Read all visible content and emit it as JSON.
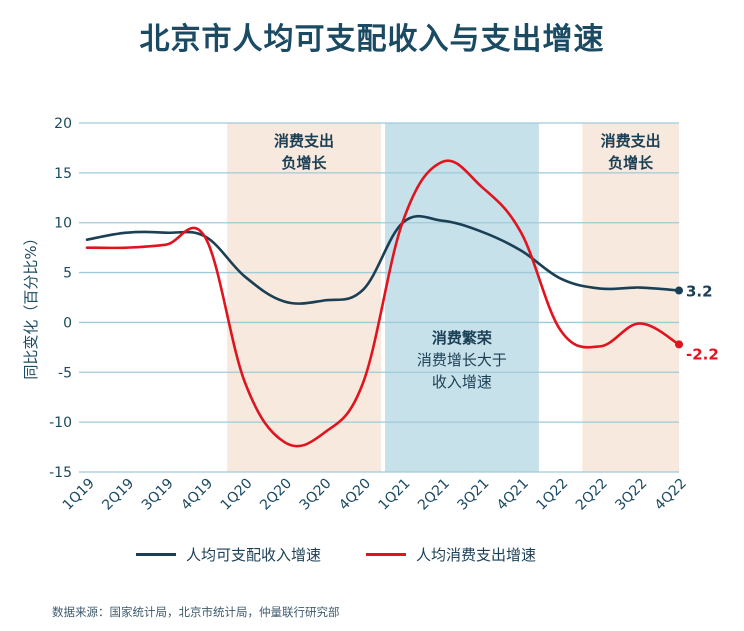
{
  "colors": {
    "income": "#1b3f55",
    "spending": "#e0141e",
    "negative_band": "#f7e9dd",
    "boom_band": "#c7e1ea",
    "grid": "#9fcad7"
  },
  "chart_data": {
    "type": "line",
    "title": "北京市人均可支配收入与支出增速",
    "ylabel": "同比变化（百分比%）",
    "ylim": [
      -15,
      20
    ],
    "yticks": [
      "20",
      "15",
      "10",
      "5",
      "0",
      "-5",
      "-10",
      "-15"
    ],
    "categories": [
      "1Q19",
      "2Q19",
      "3Q19",
      "4Q19",
      "1Q20",
      "2Q20",
      "3Q20",
      "4Q20",
      "1Q21",
      "2Q21",
      "3Q21",
      "4Q21",
      "1Q22",
      "2Q22",
      "3Q22",
      "4Q22"
    ],
    "series": [
      {
        "name": "人均可支配收入增速",
        "color": "income",
        "values": [
          8.3,
          9.0,
          9.0,
          8.6,
          4.6,
          2.1,
          2.2,
          3.3,
          10.0,
          10.2,
          9.1,
          7.2,
          4.4,
          3.4,
          3.5,
          3.2
        ]
      },
      {
        "name": "人均消费支出增速",
        "color": "spending",
        "values": [
          7.5,
          7.5,
          7.8,
          8.5,
          -6.0,
          -12.0,
          -11.1,
          -6.0,
          10.1,
          16.1,
          13.6,
          9.0,
          -0.8,
          -2.4,
          -0.1,
          -2.2
        ]
      }
    ],
    "bands": [
      {
        "from": "1Q20",
        "to": "4Q20",
        "kind": "negative_band",
        "lines": [
          "消费支出",
          "负增长"
        ]
      },
      {
        "from": "1Q21",
        "to": "4Q21",
        "kind": "boom_band",
        "lines": [
          "消费繁荣",
          "消费增长大于",
          "收入增速"
        ]
      },
      {
        "from": "2Q22",
        "to": "4Q22",
        "kind": "negative_band",
        "lines": [
          "消费支出",
          "负增长"
        ]
      }
    ],
    "end_labels": [
      "3.2",
      "-2.2"
    ],
    "grid": true,
    "legend": "bottom"
  },
  "source": "数据来源：国家统计局，北京市统计局，仲量联行研究部"
}
